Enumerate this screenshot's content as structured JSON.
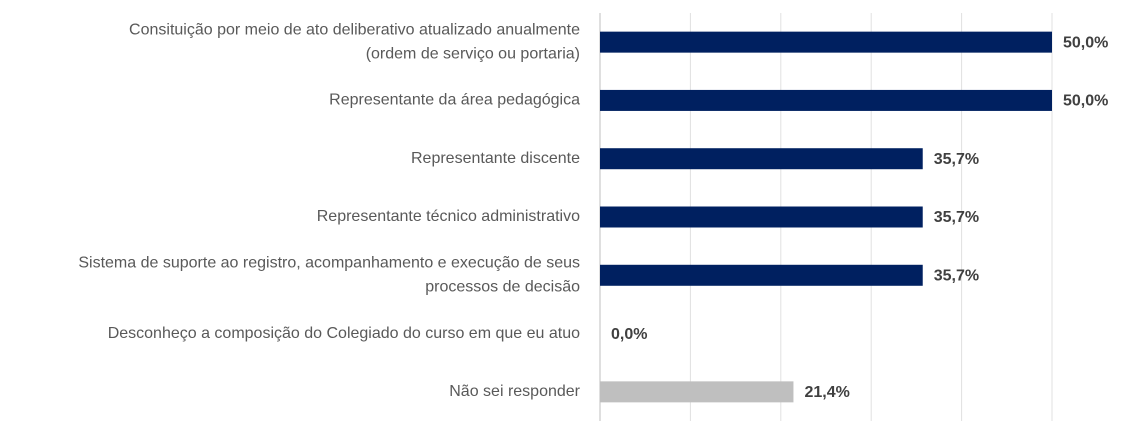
{
  "chart_data": {
    "type": "barh",
    "categories": [
      [
        "Consituição por meio de ato deliberativo atualizado anualmente",
        "(ordem de serviço ou portaria)"
      ],
      [
        "Representante da área pedagógica"
      ],
      [
        "Representante discente"
      ],
      [
        "Representante técnico administrativo"
      ],
      [
        "Sistema de suporte ao registro, acompanhamento e execução de seus",
        "processos de decisão"
      ],
      [
        "Desconheço a composição do Colegiado do curso em que eu atuo"
      ],
      [
        "Não sei responder"
      ]
    ],
    "values": [
      50,
      50,
      35.7,
      35.7,
      35.7,
      0,
      21.4
    ],
    "value_labels": [
      "50,0%",
      "50,0%",
      "35,7%",
      "35,7%",
      "35,7%",
      "0,0%",
      "21,4%"
    ],
    "colors": [
      "#002060",
      "#002060",
      "#002060",
      "#002060",
      "#002060",
      "#002060",
      "#bfbfbf"
    ],
    "xlim": [
      0,
      50
    ],
    "xticks": [
      0,
      10,
      20,
      30,
      40,
      50
    ],
    "grid": true
  }
}
